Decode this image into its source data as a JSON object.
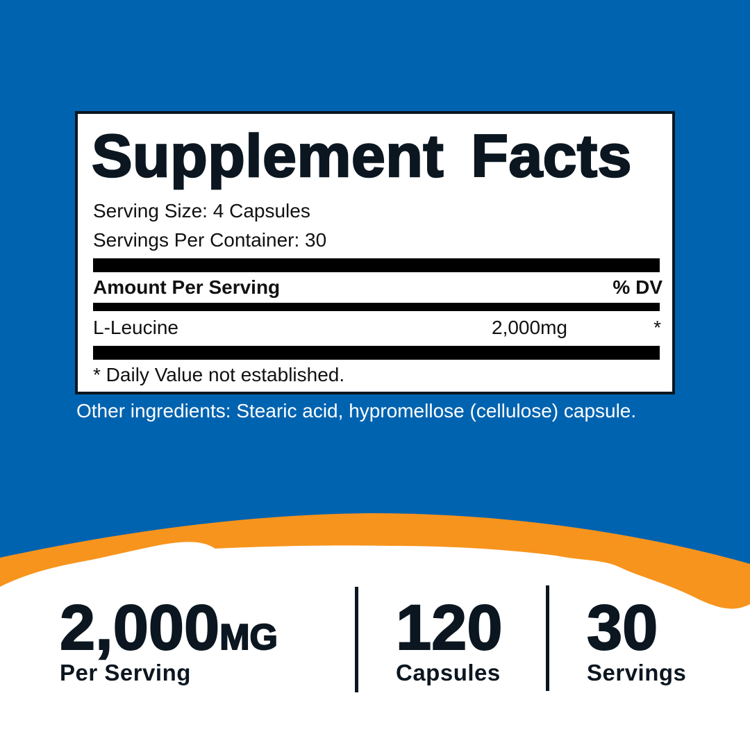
{
  "colors": {
    "background_blue": "#0063b0",
    "accent_orange": "#f7941d",
    "text_dark": "#0b1620"
  },
  "facts": {
    "title": "Supplement Facts",
    "serving_size": "Serving Size: 4 Capsules",
    "servings_per_container": "Servings Per Container: 30",
    "header_amount": "Amount Per Serving",
    "header_dv": "% DV",
    "ingredients": [
      {
        "name": "L-Leucine",
        "amount": "2,000mg",
        "dv": "*"
      }
    ],
    "footnote": "* Daily Value not established."
  },
  "other_ingredients": "Other ingredients: Stearic acid, hypromellose (cellulose) capsule.",
  "stats": [
    {
      "value": "2,000",
      "unit": "MG",
      "label": "Per Serving"
    },
    {
      "value": "120",
      "label": "Capsules"
    },
    {
      "value": "30",
      "label": "Servings"
    }
  ]
}
